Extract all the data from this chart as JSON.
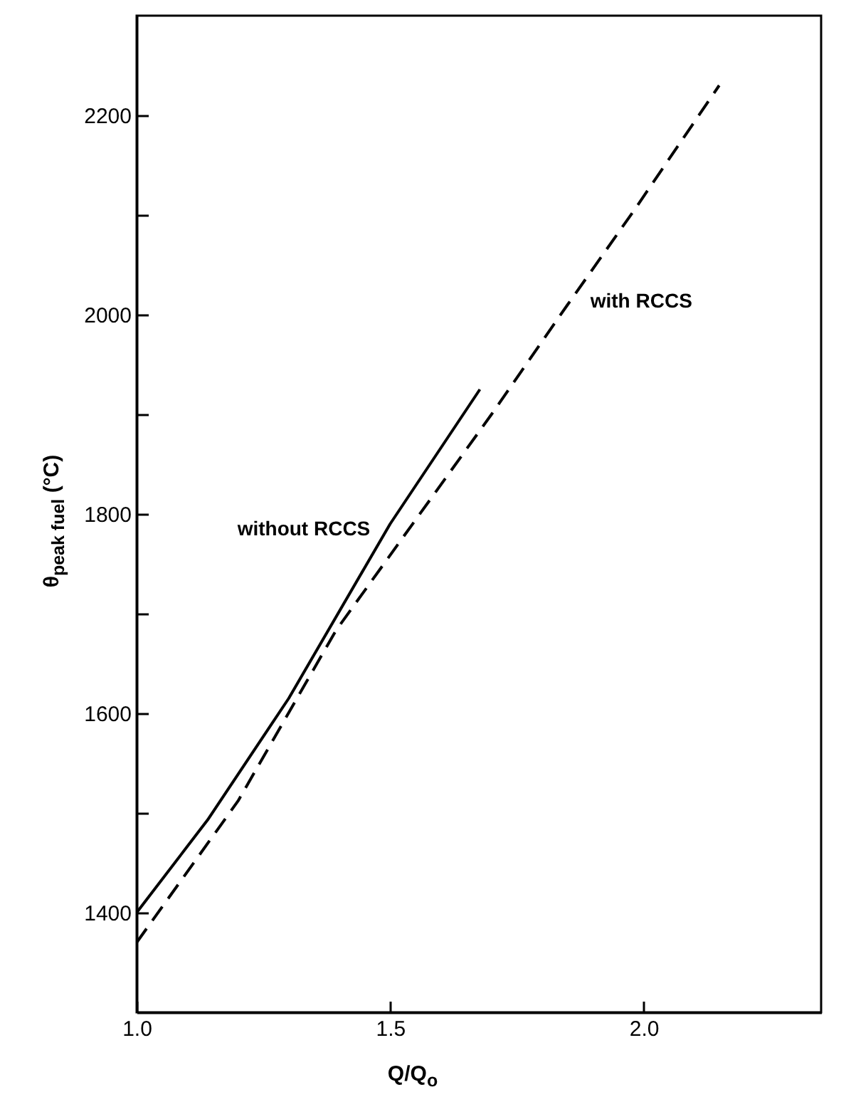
{
  "chart_data": {
    "type": "line",
    "xlabel": "Q/Q$_{o}$",
    "ylabel": "θ$_{peak fuel}$ (°C)",
    "xlim": [
      1.0,
      2.35
    ],
    "ylim": [
      1300,
      2300
    ],
    "xticks": [
      {
        "value": 1.0,
        "label": "1.0"
      },
      {
        "value": 1.5,
        "label": "1.5"
      },
      {
        "value": 2.0,
        "label": "2.0"
      }
    ],
    "yticks": [
      1400,
      {
        "value": 1500,
        "label": null
      },
      1600,
      {
        "value": 1700,
        "label": null
      },
      1800,
      {
        "value": 1900,
        "label": null
      },
      2000,
      {
        "value": 2100,
        "label": null
      },
      2200
    ],
    "grid": false,
    "legend": false,
    "marker": "none",
    "series": [
      {
        "name": "without RCCS",
        "color": "#000000",
        "line_style": "solid",
        "x": [
          1.0,
          1.14,
          1.3,
          1.5,
          1.677
        ],
        "values": [
          1400,
          1493,
          1615,
          1790,
          1925
        ]
      },
      {
        "name": "with RCCS",
        "color": "#000000",
        "line_style": "dashed",
        "x": [
          1.0,
          1.2,
          1.393,
          1.7,
          1.85,
          1.983,
          2.149
        ],
        "values": [
          1370,
          1512,
          1683,
          1900,
          2010,
          2106,
          2230
        ]
      }
    ]
  }
}
